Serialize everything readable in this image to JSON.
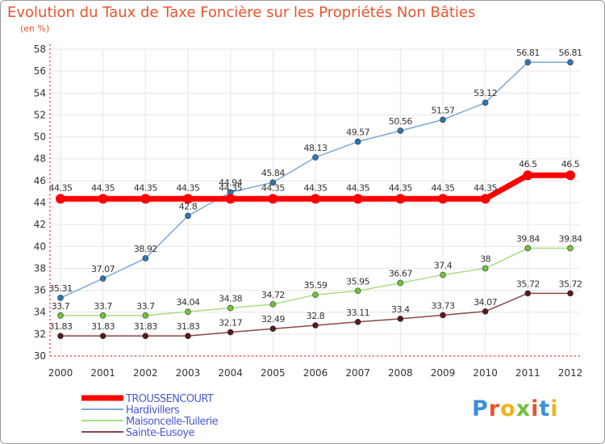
{
  "header": {
    "title": "Evolution du Taux de Taxe Foncière sur les Propriétés Non Bâties",
    "subtitle": "(en %)"
  },
  "brand": {
    "logo_text": "Proxiti"
  },
  "colors": {
    "title": "#e8542c",
    "axis": "#ff0000",
    "grid": "#e6e6e6",
    "legend_text": "#4a5bd1"
  },
  "chart_data": {
    "type": "line",
    "title": "Evolution du Taux de Taxe Foncière sur les Propriétés Non Bâties",
    "ylabel": "(en %)",
    "xlabel": "",
    "ylim": [
      30,
      58
    ],
    "yticks": [
      30,
      32,
      34,
      36,
      38,
      40,
      42,
      44,
      46,
      48,
      50,
      52,
      54,
      56,
      58
    ],
    "grid": true,
    "legend_placement": "bottom-left",
    "categories": [
      "2000",
      "2001",
      "2002",
      "2003",
      "2004",
      "2005",
      "2006",
      "2007",
      "2008",
      "2009",
      "2010",
      "2011",
      "2012"
    ],
    "series": [
      {
        "name": "TROUSSENCOURT",
        "color": "#ff0000",
        "marker_color": "#ff0000",
        "highlight": true,
        "values": [
          44.35,
          44.35,
          44.35,
          44.35,
          44.35,
          44.35,
          44.35,
          44.35,
          44.35,
          44.35,
          44.35,
          46.5,
          46.5
        ],
        "labels": [
          "44.35",
          "44.35",
          "44.35",
          "44.35",
          "44.35",
          "44.35",
          "44.35",
          "44.35",
          "44.35",
          "44.35",
          "44.35",
          "46.5",
          "46.5"
        ]
      },
      {
        "name": "Hardivillers",
        "color": "#7ea9d3",
        "marker_color": "#2f74b5",
        "highlight": false,
        "values": [
          35.31,
          37.07,
          38.92,
          42.8,
          44.94,
          45.84,
          48.13,
          49.57,
          50.56,
          51.57,
          53.12,
          56.81,
          56.81
        ],
        "labels": [
          "35.31",
          "37.07",
          "38.92",
          "42.8",
          "44.94",
          "45.84",
          "48.13",
          "49.57",
          "50.56",
          "51.57",
          "53.12",
          "56.81",
          "56.81"
        ]
      },
      {
        "name": "Maisoncelle-Tuilerie",
        "color": "#a9dd84",
        "marker_color": "#6fc43b",
        "highlight": false,
        "values": [
          33.7,
          33.7,
          33.7,
          34.04,
          34.38,
          34.72,
          35.59,
          35.95,
          36.67,
          37.4,
          38,
          39.84,
          39.84
        ],
        "labels": [
          "33.7",
          "33.7",
          "33.7",
          "34.04",
          "34.38",
          "34.72",
          "35.59",
          "35.95",
          "36.67",
          "37.4",
          "38",
          "39.84",
          "39.84"
        ]
      },
      {
        "name": "Sainte-Eusoye",
        "color": "#8b4747",
        "marker_color": "#5a1a1a",
        "highlight": false,
        "values": [
          31.83,
          31.83,
          31.83,
          31.83,
          32.17,
          32.49,
          32.8,
          33.11,
          33.4,
          33.73,
          34.07,
          35.72,
          35.72
        ],
        "labels": [
          "31.83",
          "31.83",
          "31.83",
          "31.83",
          "32.17",
          "32.49",
          "32.8",
          "33.11",
          "33.4",
          "33.73",
          "34.07",
          "35.72",
          "35.72"
        ]
      }
    ]
  }
}
